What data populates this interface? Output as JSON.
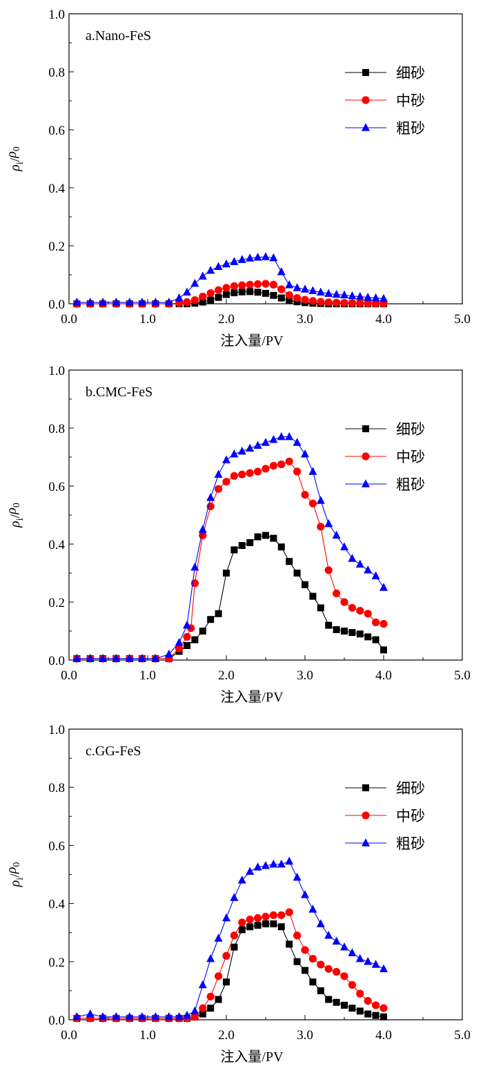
{
  "chart_data": [
    {
      "type": "line",
      "title": "a.Nano-FeS",
      "xlabel": "注入量/PV",
      "ylabel": "ρi/ρ0",
      "xlim": [
        0.0,
        5.0
      ],
      "ylim": [
        0.0,
        1.0
      ],
      "xticks": [
        "0.0",
        "1.0",
        "2.0",
        "3.0",
        "4.0",
        "5.0"
      ],
      "yticks": [
        "0.0",
        "0.2",
        "0.4",
        "0.6",
        "0.8",
        "1.0"
      ],
      "legend_position": "top-right",
      "series": [
        {
          "name": "细砂",
          "color": "#000000",
          "marker": "square",
          "x": [
            0.1,
            0.27,
            0.43,
            0.6,
            0.77,
            0.93,
            1.1,
            1.27,
            1.4,
            1.5,
            1.6,
            1.7,
            1.8,
            1.9,
            2.0,
            2.1,
            2.2,
            2.3,
            2.4,
            2.5,
            2.6,
            2.7,
            2.8,
            2.9,
            3.0,
            3.1,
            3.2,
            3.3,
            3.4,
            3.5,
            3.6,
            3.7,
            3.8,
            3.9,
            4.0
          ],
          "values": [
            0,
            0,
            0,
            0,
            0,
            0,
            0,
            0,
            0,
            0,
            0.002,
            0.006,
            0.013,
            0.022,
            0.032,
            0.038,
            0.041,
            0.042,
            0.04,
            0.036,
            0.029,
            0.02,
            0.012,
            0.007,
            0.004,
            0.002,
            0.001,
            0,
            0,
            0,
            0,
            0,
            0,
            0,
            0
          ]
        },
        {
          "name": "中砂",
          "color": "#ff0000",
          "marker": "circle",
          "x": [
            0.1,
            0.27,
            0.43,
            0.6,
            0.77,
            0.93,
            1.1,
            1.27,
            1.4,
            1.5,
            1.6,
            1.7,
            1.8,
            1.9,
            2.0,
            2.1,
            2.2,
            2.3,
            2.4,
            2.5,
            2.6,
            2.7,
            2.8,
            2.9,
            3.0,
            3.1,
            3.2,
            3.3,
            3.4,
            3.5,
            3.6,
            3.7,
            3.8,
            3.9,
            4.0
          ],
          "values": [
            0,
            0,
            0,
            0,
            0,
            0,
            0,
            0,
            0.002,
            0.006,
            0.013,
            0.025,
            0.037,
            0.047,
            0.055,
            0.061,
            0.064,
            0.066,
            0.068,
            0.069,
            0.066,
            0.05,
            0.03,
            0.02,
            0.014,
            0.01,
            0.007,
            0.005,
            0.004,
            0.003,
            0.002,
            0.002,
            0.001,
            0.001,
            0.001
          ]
        },
        {
          "name": "粗砂",
          "color": "#0000ff",
          "marker": "triangle",
          "x": [
            0.1,
            0.27,
            0.43,
            0.6,
            0.77,
            0.93,
            1.1,
            1.27,
            1.4,
            1.5,
            1.6,
            1.7,
            1.8,
            1.9,
            2.0,
            2.1,
            2.2,
            2.3,
            2.4,
            2.5,
            2.6,
            2.7,
            2.8,
            2.9,
            3.0,
            3.1,
            3.2,
            3.3,
            3.4,
            3.5,
            3.6,
            3.7,
            3.8,
            3.9,
            4.0
          ],
          "values": [
            0.005,
            0.005,
            0.005,
            0.005,
            0.005,
            0.005,
            0.005,
            0.005,
            0.02,
            0.04,
            0.07,
            0.095,
            0.115,
            0.128,
            0.137,
            0.145,
            0.152,
            0.157,
            0.16,
            0.162,
            0.158,
            0.11,
            0.065,
            0.055,
            0.05,
            0.045,
            0.04,
            0.035,
            0.032,
            0.03,
            0.027,
            0.025,
            0.022,
            0.02,
            0.018
          ]
        }
      ]
    },
    {
      "type": "line",
      "title": "b.CMC-FeS",
      "xlabel": "注入量/PV",
      "ylabel": "ρi/ρ0",
      "xlim": [
        0.0,
        5.0
      ],
      "ylim": [
        0.0,
        1.0
      ],
      "xticks": [
        "0.0",
        "1.0",
        "2.0",
        "3.0",
        "4.0",
        "5.0"
      ],
      "yticks": [
        "0.0",
        "0.2",
        "0.4",
        "0.6",
        "0.8",
        "1.0"
      ],
      "legend_position": "top-right",
      "series": [
        {
          "name": "细砂",
          "color": "#000000",
          "marker": "square",
          "x": [
            0.1,
            0.27,
            0.43,
            0.6,
            0.77,
            0.93,
            1.1,
            1.27,
            1.4,
            1.5,
            1.6,
            1.7,
            1.8,
            1.9,
            2.0,
            2.1,
            2.2,
            2.3,
            2.4,
            2.5,
            2.6,
            2.7,
            2.8,
            2.9,
            3.0,
            3.1,
            3.2,
            3.3,
            3.4,
            3.5,
            3.6,
            3.7,
            3.8,
            3.9,
            4.0
          ],
          "values": [
            0.005,
            0.005,
            0.005,
            0.005,
            0.005,
            0.005,
            0.005,
            0.005,
            0.03,
            0.05,
            0.07,
            0.1,
            0.14,
            0.16,
            0.3,
            0.38,
            0.395,
            0.405,
            0.425,
            0.43,
            0.42,
            0.39,
            0.34,
            0.3,
            0.26,
            0.22,
            0.18,
            0.12,
            0.105,
            0.1,
            0.095,
            0.09,
            0.08,
            0.07,
            0.035
          ]
        },
        {
          "name": "中砂",
          "color": "#ff0000",
          "marker": "circle",
          "x": [
            0.1,
            0.27,
            0.43,
            0.6,
            0.77,
            0.93,
            1.1,
            1.27,
            1.4,
            1.5,
            1.55,
            1.6,
            1.7,
            1.8,
            1.9,
            2.0,
            2.1,
            2.2,
            2.3,
            2.4,
            2.5,
            2.6,
            2.7,
            2.8,
            2.9,
            3.0,
            3.1,
            3.2,
            3.3,
            3.4,
            3.5,
            3.6,
            3.7,
            3.8,
            3.9,
            4.0
          ],
          "values": [
            0.005,
            0.005,
            0.005,
            0.005,
            0.005,
            0.005,
            0.005,
            0.005,
            0.04,
            0.08,
            0.11,
            0.265,
            0.43,
            0.53,
            0.59,
            0.615,
            0.635,
            0.64,
            0.645,
            0.65,
            0.66,
            0.67,
            0.675,
            0.685,
            0.65,
            0.57,
            0.54,
            0.46,
            0.31,
            0.23,
            0.2,
            0.18,
            0.17,
            0.16,
            0.13,
            0.125
          ]
        },
        {
          "name": "粗砂",
          "color": "#0000ff",
          "marker": "triangle",
          "x": [
            0.1,
            0.27,
            0.43,
            0.6,
            0.77,
            0.93,
            1.1,
            1.27,
            1.4,
            1.5,
            1.6,
            1.7,
            1.8,
            1.9,
            2.0,
            2.1,
            2.2,
            2.3,
            2.4,
            2.5,
            2.6,
            2.7,
            2.8,
            2.9,
            3.0,
            3.1,
            3.2,
            3.3,
            3.4,
            3.5,
            3.6,
            3.7,
            3.8,
            3.9,
            4.0
          ],
          "values": [
            0.005,
            0.005,
            0.005,
            0.005,
            0.005,
            0.005,
            0.005,
            0.02,
            0.06,
            0.12,
            0.32,
            0.45,
            0.56,
            0.64,
            0.69,
            0.71,
            0.72,
            0.73,
            0.74,
            0.75,
            0.76,
            0.77,
            0.77,
            0.75,
            0.71,
            0.65,
            0.55,
            0.47,
            0.43,
            0.39,
            0.35,
            0.33,
            0.31,
            0.29,
            0.25
          ]
        }
      ]
    },
    {
      "type": "line",
      "title": "c.GG-FeS",
      "xlabel": "注入量/PV",
      "ylabel": "ρi/ρ0",
      "xlim": [
        0.0,
        5.0
      ],
      "ylim": [
        0.0,
        1.0
      ],
      "xticks": [
        "0.0",
        "1.0",
        "2.0",
        "3.0",
        "4.0",
        "5.0"
      ],
      "yticks": [
        "0.0",
        "0.2",
        "0.4",
        "0.6",
        "0.8",
        "1.0"
      ],
      "legend_position": "top-right",
      "series": [
        {
          "name": "细砂",
          "color": "#000000",
          "marker": "square",
          "x": [
            0.1,
            0.27,
            0.43,
            0.6,
            0.77,
            0.93,
            1.1,
            1.27,
            1.4,
            1.5,
            1.6,
            1.7,
            1.8,
            1.9,
            2.0,
            2.1,
            2.2,
            2.3,
            2.4,
            2.5,
            2.6,
            2.7,
            2.8,
            2.9,
            3.0,
            3.1,
            3.2,
            3.3,
            3.4,
            3.5,
            3.6,
            3.7,
            3.8,
            3.9,
            4.0
          ],
          "values": [
            0.005,
            0.005,
            0.005,
            0.005,
            0.005,
            0.005,
            0.005,
            0.005,
            0.005,
            0.005,
            0.01,
            0.02,
            0.04,
            0.07,
            0.13,
            0.25,
            0.31,
            0.32,
            0.325,
            0.33,
            0.33,
            0.32,
            0.26,
            0.2,
            0.17,
            0.13,
            0.1,
            0.07,
            0.06,
            0.05,
            0.04,
            0.03,
            0.02,
            0.015,
            0.01
          ]
        },
        {
          "name": "中砂",
          "color": "#ff0000",
          "marker": "circle",
          "x": [
            0.1,
            0.27,
            0.43,
            0.6,
            0.77,
            0.93,
            1.1,
            1.27,
            1.4,
            1.5,
            1.6,
            1.7,
            1.8,
            1.9,
            2.0,
            2.1,
            2.2,
            2.3,
            2.4,
            2.5,
            2.6,
            2.7,
            2.8,
            2.9,
            3.0,
            3.1,
            3.2,
            3.3,
            3.4,
            3.5,
            3.6,
            3.7,
            3.8,
            3.9,
            4.0
          ],
          "values": [
            0.005,
            0.005,
            0.005,
            0.005,
            0.005,
            0.005,
            0.005,
            0.005,
            0.005,
            0.005,
            0.01,
            0.04,
            0.08,
            0.15,
            0.22,
            0.29,
            0.335,
            0.345,
            0.35,
            0.355,
            0.36,
            0.36,
            0.37,
            0.29,
            0.24,
            0.21,
            0.19,
            0.175,
            0.165,
            0.15,
            0.12,
            0.09,
            0.065,
            0.05,
            0.04
          ]
        },
        {
          "name": "粗砂",
          "color": "#0000ff",
          "marker": "triangle",
          "x": [
            0.1,
            0.27,
            0.43,
            0.6,
            0.77,
            0.93,
            1.1,
            1.27,
            1.4,
            1.5,
            1.6,
            1.7,
            1.8,
            1.9,
            2.0,
            2.1,
            2.2,
            2.3,
            2.4,
            2.5,
            2.6,
            2.7,
            2.8,
            2.9,
            3.0,
            3.1,
            3.2,
            3.3,
            3.4,
            3.5,
            3.6,
            3.7,
            3.8,
            3.9,
            4.0
          ],
          "values": [
            0.01,
            0.02,
            0.01,
            0.01,
            0.01,
            0.01,
            0.01,
            0.01,
            0.01,
            0.015,
            0.03,
            0.12,
            0.21,
            0.28,
            0.35,
            0.42,
            0.48,
            0.51,
            0.525,
            0.53,
            0.535,
            0.535,
            0.545,
            0.49,
            0.43,
            0.38,
            0.33,
            0.29,
            0.27,
            0.25,
            0.23,
            0.21,
            0.2,
            0.19,
            0.175
          ]
        }
      ]
    }
  ]
}
